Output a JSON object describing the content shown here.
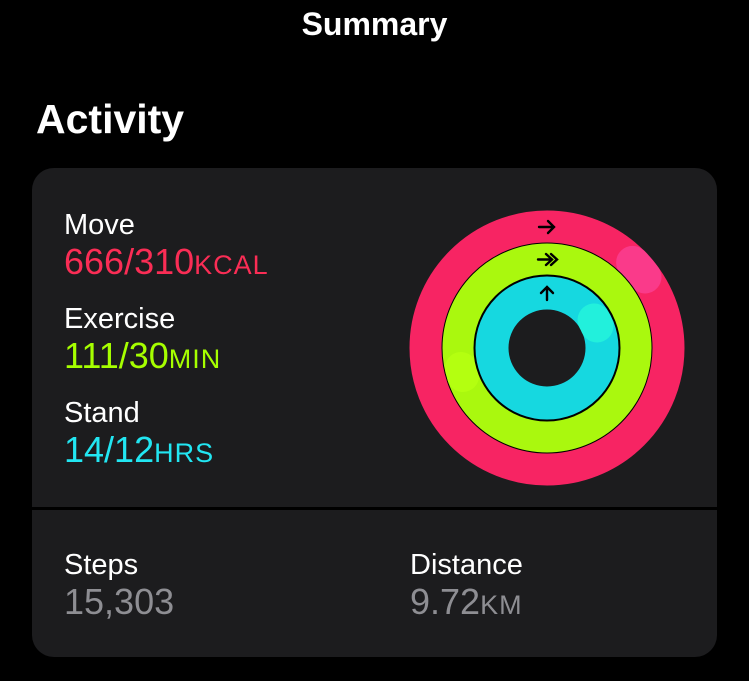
{
  "header": {
    "title": "Summary"
  },
  "section": {
    "title": "Activity"
  },
  "activity": {
    "move": {
      "label": "Move",
      "value": "666/310",
      "unit": "KCAL",
      "color": "#fa2d6c",
      "progress": 2.148
    },
    "exercise": {
      "label": "Exercise",
      "value": "111/30",
      "unit": "MIN",
      "color": "#b0fa0e",
      "progress": 3.7
    },
    "stand": {
      "label": "Stand",
      "value": "14/12",
      "unit": "HRS",
      "color": "#00e0e6",
      "progress": 1.167
    }
  },
  "stats": {
    "steps": {
      "label": "Steps",
      "value": "15,303"
    },
    "distance": {
      "label": "Distance",
      "value": "9.72",
      "unit": "KM"
    }
  },
  "icons": {
    "move": "arrow-right-icon",
    "exercise": "double-arrow-right-icon",
    "stand": "arrow-up-icon"
  }
}
